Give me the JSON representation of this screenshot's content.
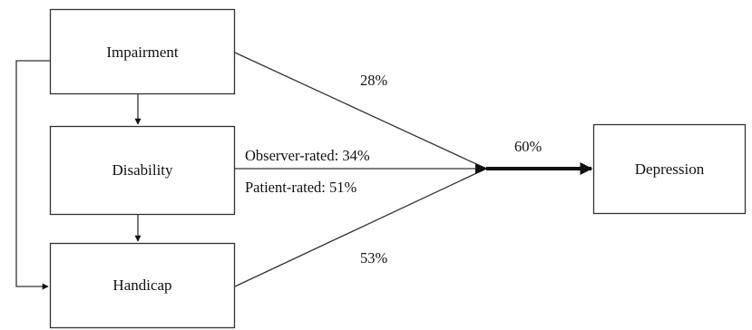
{
  "diagram": {
    "nodes": {
      "impairment": "Impairment",
      "disability": "Disability",
      "handicap": "Handicap",
      "depression": "Depression"
    },
    "edges": {
      "impairment_to_depression": "28%",
      "disability_observer": "Observer-rated: 34%",
      "disability_patient": "Patient-rated: 51%",
      "handicap_to_depression": "53%",
      "combined_to_depression": "60%"
    }
  }
}
